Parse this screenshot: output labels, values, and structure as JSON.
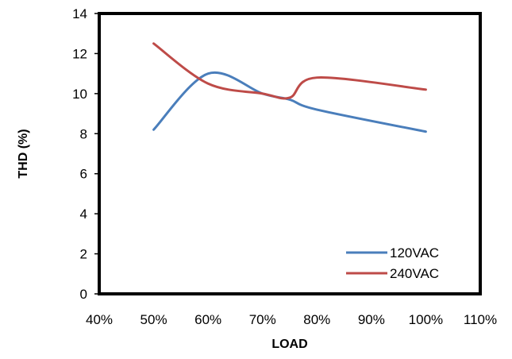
{
  "chart_data": {
    "type": "line",
    "title": "",
    "xlabel": "LOAD",
    "ylabel": "THD (%)",
    "xlim": [
      0.4,
      1.1
    ],
    "ylim": [
      0,
      14
    ],
    "x_ticks": [
      0.4,
      0.5,
      0.6,
      0.7,
      0.8,
      0.9,
      1.0,
      1.1
    ],
    "x_tick_labels": [
      "40%",
      "50%",
      "60%",
      "70%",
      "80%",
      "90%",
      "100%",
      "110%"
    ],
    "y_ticks": [
      0,
      2,
      4,
      6,
      8,
      10,
      12,
      14
    ],
    "y_tick_labels": [
      "0",
      "2",
      "4",
      "6",
      "8",
      "10",
      "12",
      "14"
    ],
    "grid": false,
    "legend_position": "bottom-right",
    "series": [
      {
        "name": "120VAC",
        "color": "#4a7ebb",
        "x": [
          0.5,
          0.6,
          0.7,
          0.75,
          0.8,
          1.0
        ],
        "y": [
          8.2,
          11.0,
          10.0,
          9.7,
          9.2,
          8.1
        ]
      },
      {
        "name": "240VAC",
        "color": "#be4b48",
        "x": [
          0.5,
          0.6,
          0.7,
          0.75,
          0.8,
          1.0
        ],
        "y": [
          12.5,
          10.5,
          10.0,
          9.8,
          10.8,
          10.2
        ]
      }
    ]
  }
}
